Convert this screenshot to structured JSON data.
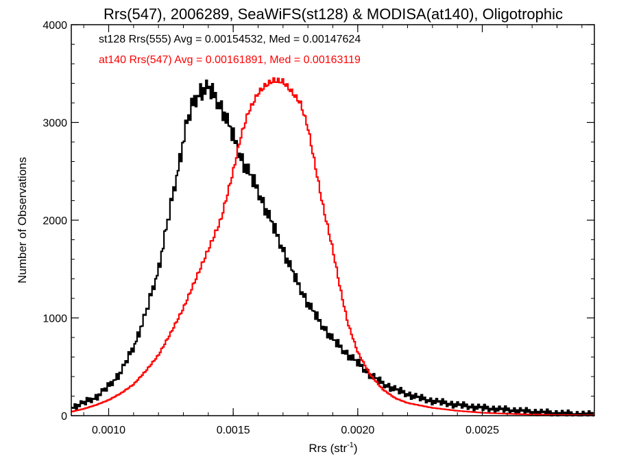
{
  "chart_data": {
    "type": "line",
    "step": true,
    "title": "Rrs(547), 2006289, SeaWiFS(st128) & MODISA(at140), Oligotrophic",
    "xlabel_main": "Rrs (str",
    "xlabel_sup": "-1",
    "xlabel_close": ")",
    "ylabel": "Number of Observations",
    "xlim": [
      0.00085,
      0.00295
    ],
    "ylim": [
      0,
      4000
    ],
    "xticks": [
      {
        "value": 0.001,
        "label": "0.0010"
      },
      {
        "value": 0.0015,
        "label": "0.0015"
      },
      {
        "value": 0.002,
        "label": "0.0020"
      },
      {
        "value": 0.0025,
        "label": "0.0025"
      }
    ],
    "yticks": [
      {
        "value": 0,
        "label": "0"
      },
      {
        "value": 1000,
        "label": "1000"
      },
      {
        "value": 2000,
        "label": "2000"
      },
      {
        "value": 3000,
        "label": "3000"
      },
      {
        "value": 4000,
        "label": "4000"
      }
    ],
    "x_minor_step": 0.0001,
    "y_minor_step": 200,
    "legend_placement": "top-left",
    "series": [
      {
        "label": "st128 Rrs(555) Avg = 0.00154532, Med = 0.00147624",
        "color": "#000000",
        "jagged": true,
        "points": [
          [
            0.00085,
            80
          ],
          [
            0.0009,
            130
          ],
          [
            0.00095,
            190
          ],
          [
            0.001,
            300
          ],
          [
            0.00105,
            450
          ],
          [
            0.0011,
            700
          ],
          [
            0.00115,
            1050
          ],
          [
            0.0012,
            1500
          ],
          [
            0.00125,
            2150
          ],
          [
            0.00128,
            2550
          ],
          [
            0.00131,
            2950
          ],
          [
            0.00134,
            3200
          ],
          [
            0.00137,
            3330
          ],
          [
            0.0014,
            3350
          ],
          [
            0.00143,
            3250
          ],
          [
            0.00146,
            3120
          ],
          [
            0.0015,
            2850
          ],
          [
            0.00153,
            2650
          ],
          [
            0.00156,
            2500
          ],
          [
            0.0016,
            2300
          ],
          [
            0.00165,
            2000
          ],
          [
            0.0017,
            1700
          ],
          [
            0.00175,
            1400
          ],
          [
            0.0018,
            1150
          ],
          [
            0.00185,
            950
          ],
          [
            0.0019,
            780
          ],
          [
            0.00195,
            650
          ],
          [
            0.002,
            540
          ],
          [
            0.00205,
            420
          ],
          [
            0.0021,
            330
          ],
          [
            0.00215,
            270
          ],
          [
            0.0022,
            220
          ],
          [
            0.00225,
            180
          ],
          [
            0.0023,
            150
          ],
          [
            0.0024,
            110
          ],
          [
            0.0025,
            80
          ],
          [
            0.0026,
            60
          ],
          [
            0.0027,
            40
          ],
          [
            0.0028,
            25
          ],
          [
            0.0029,
            15
          ],
          [
            0.00295,
            12
          ]
        ]
      },
      {
        "label": "at140 Rrs(547) Avg = 0.00161891, Med = 0.00163119",
        "color": "#ff0000",
        "jagged": false,
        "points": [
          [
            0.00085,
            40
          ],
          [
            0.0009,
            70
          ],
          [
            0.00095,
            110
          ],
          [
            0.001,
            160
          ],
          [
            0.00105,
            230
          ],
          [
            0.0011,
            320
          ],
          [
            0.00115,
            460
          ],
          [
            0.0012,
            620
          ],
          [
            0.00125,
            850
          ],
          [
            0.0013,
            1100
          ],
          [
            0.00135,
            1400
          ],
          [
            0.0014,
            1700
          ],
          [
            0.00145,
            2000
          ],
          [
            0.0015,
            2500
          ],
          [
            0.00153,
            2850
          ],
          [
            0.00156,
            3100
          ],
          [
            0.0016,
            3300
          ],
          [
            0.00163,
            3380
          ],
          [
            0.00166,
            3430
          ],
          [
            0.0017,
            3420
          ],
          [
            0.00173,
            3330
          ],
          [
            0.00177,
            3200
          ],
          [
            0.0018,
            2950
          ],
          [
            0.00183,
            2550
          ],
          [
            0.00186,
            2150
          ],
          [
            0.0019,
            1700
          ],
          [
            0.00193,
            1300
          ],
          [
            0.00196,
            950
          ],
          [
            0.002,
            650
          ],
          [
            0.00205,
            420
          ],
          [
            0.0021,
            270
          ],
          [
            0.00215,
            180
          ],
          [
            0.0022,
            130
          ],
          [
            0.0023,
            80
          ],
          [
            0.0024,
            50
          ],
          [
            0.0025,
            30
          ],
          [
            0.0026,
            20
          ],
          [
            0.0027,
            12
          ],
          [
            0.0028,
            8
          ],
          [
            0.0029,
            5
          ],
          [
            0.00295,
            4
          ]
        ]
      }
    ]
  }
}
